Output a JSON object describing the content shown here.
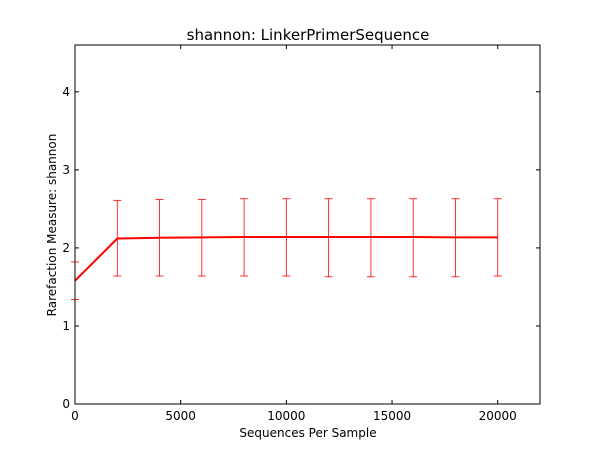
{
  "chart_data": {
    "type": "line",
    "title": "shannon: LinkerPrimerSequence",
    "xlabel": "Sequences Per Sample",
    "ylabel": "Rarefaction Measure: shannon",
    "xlim": [
      0,
      22000
    ],
    "ylim": [
      0,
      4.6
    ],
    "xticks": [
      0,
      5000,
      10000,
      15000,
      20000
    ],
    "xtick_labels": [
      "0",
      "5000",
      "10000",
      "15000",
      "20000"
    ],
    "yticks": [
      0,
      1,
      2,
      3,
      4
    ],
    "ytick_labels": [
      "0",
      "1",
      "2",
      "3",
      "4"
    ],
    "grid": false,
    "series": [
      {
        "color": "#ff0000",
        "x": [
          0,
          2000,
          4000,
          6000,
          8000,
          10000,
          12000,
          14000,
          16000,
          18000,
          20000
        ],
        "y": [
          1.58,
          2.12,
          2.13,
          2.135,
          2.14,
          2.14,
          2.14,
          2.14,
          2.14,
          2.135,
          2.135
        ],
        "err_low": [
          1.34,
          1.64,
          1.64,
          1.64,
          1.64,
          1.64,
          1.63,
          1.63,
          1.63,
          1.63,
          1.64
        ],
        "err_high": [
          1.82,
          2.61,
          2.62,
          2.62,
          2.63,
          2.63,
          2.63,
          2.63,
          2.63,
          2.63,
          2.63
        ]
      }
    ]
  }
}
